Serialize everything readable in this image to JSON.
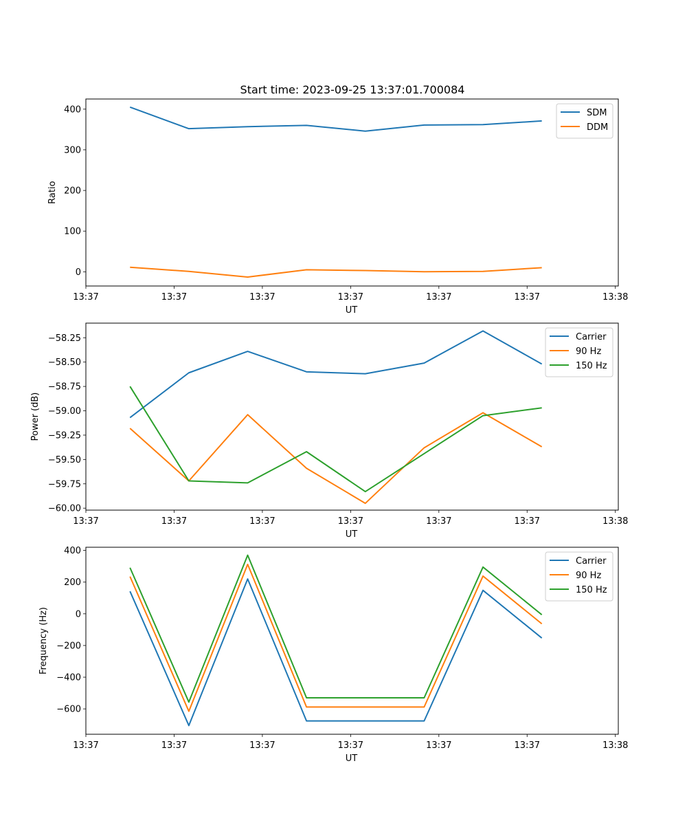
{
  "figure_title": "Start time: 2023-09-25 13:37:01.700084",
  "chart_data": [
    {
      "type": "line",
      "title": "Start time: 2023-09-25 13:37:01.700084",
      "xlabel": "UT",
      "ylabel": "Ratio",
      "xlim": [
        -0.75,
        8.3
      ],
      "ylim": [
        -35,
        425
      ],
      "x_ticks": [
        -0.75,
        0.75,
        2.25,
        3.75,
        5.25,
        6.75,
        8.25
      ],
      "x_tick_labels": [
        "13:37",
        "13:37",
        "13:37",
        "13:37",
        "13:37",
        "13:37",
        "13:38"
      ],
      "y_ticks": [
        0,
        100,
        200,
        300,
        400
      ],
      "y_tick_labels": [
        "0",
        "100",
        "200",
        "300",
        "400"
      ],
      "x": [
        0,
        1,
        2,
        3,
        4,
        5,
        6,
        7
      ],
      "legend_position": "top-right",
      "series": [
        {
          "name": "SDM",
          "color": "#1f77b4",
          "values": [
            405,
            352,
            357,
            360,
            346,
            361,
            362,
            371
          ]
        },
        {
          "name": "DDM",
          "color": "#ff7f0e",
          "values": [
            11,
            1,
            -13,
            5,
            3,
            0,
            1,
            10
          ]
        }
      ]
    },
    {
      "type": "line",
      "title": "",
      "xlabel": "UT",
      "ylabel": "Power (dB)",
      "xlim": [
        -0.75,
        8.3
      ],
      "ylim": [
        -60.02,
        -58.1
      ],
      "x_ticks": [
        -0.75,
        0.75,
        2.25,
        3.75,
        5.25,
        6.75,
        8.25
      ],
      "x_tick_labels": [
        "13:37",
        "13:37",
        "13:37",
        "13:37",
        "13:37",
        "13:37",
        "13:38"
      ],
      "y_ticks": [
        -60.0,
        -59.75,
        -59.5,
        -59.25,
        -59.0,
        -58.75,
        -58.5,
        -58.25
      ],
      "y_tick_labels": [
        "−60.00",
        "−59.75",
        "−59.50",
        "−59.25",
        "−59.00",
        "−58.75",
        "−58.50",
        "−58.25"
      ],
      "x": [
        0,
        1,
        2,
        3,
        4,
        5,
        6,
        7
      ],
      "legend_position": "top-right",
      "series": [
        {
          "name": "Carrier",
          "color": "#1f77b4",
          "values": [
            -59.07,
            -58.61,
            -58.39,
            -58.6,
            -58.62,
            -58.51,
            -58.18,
            -58.52
          ]
        },
        {
          "name": "90 Hz",
          "color": "#ff7f0e",
          "values": [
            -59.18,
            -59.72,
            -59.04,
            -59.59,
            -59.95,
            -59.38,
            -59.02,
            -59.37
          ]
        },
        {
          "name": "150 Hz",
          "color": "#2ca02c",
          "values": [
            -58.75,
            -59.72,
            -59.74,
            -59.42,
            -59.83,
            -59.44,
            -59.05,
            -58.97
          ]
        }
      ]
    },
    {
      "type": "line",
      "title": "",
      "xlabel": "UT",
      "ylabel": "Frequency (Hz)",
      "xlim": [
        -0.75,
        8.3
      ],
      "ylim": [
        -760,
        420
      ],
      "x_ticks": [
        -0.75,
        0.75,
        2.25,
        3.75,
        5.25,
        6.75,
        8.25
      ],
      "x_tick_labels": [
        "13:37",
        "13:37",
        "13:37",
        "13:37",
        "13:37",
        "13:37",
        "13:38"
      ],
      "y_ticks": [
        -600,
        -400,
        -200,
        0,
        200,
        400
      ],
      "y_tick_labels": [
        "−600",
        "−400",
        "−200",
        "0",
        "200",
        "400"
      ],
      "x": [
        0,
        1,
        2,
        3,
        4,
        5,
        6,
        7
      ],
      "legend_position": "top-right",
      "series": [
        {
          "name": "Carrier",
          "color": "#1f77b4",
          "values": [
            142,
            -705,
            220,
            -676,
            -676,
            -676,
            148,
            -153
          ]
        },
        {
          "name": "90 Hz",
          "color": "#ff7f0e",
          "values": [
            235,
            -615,
            312,
            -588,
            -588,
            -588,
            238,
            -63
          ]
        },
        {
          "name": "150 Hz",
          "color": "#2ca02c",
          "values": [
            291,
            -557,
            370,
            -530,
            -530,
            -530,
            295,
            -6
          ]
        }
      ]
    }
  ]
}
